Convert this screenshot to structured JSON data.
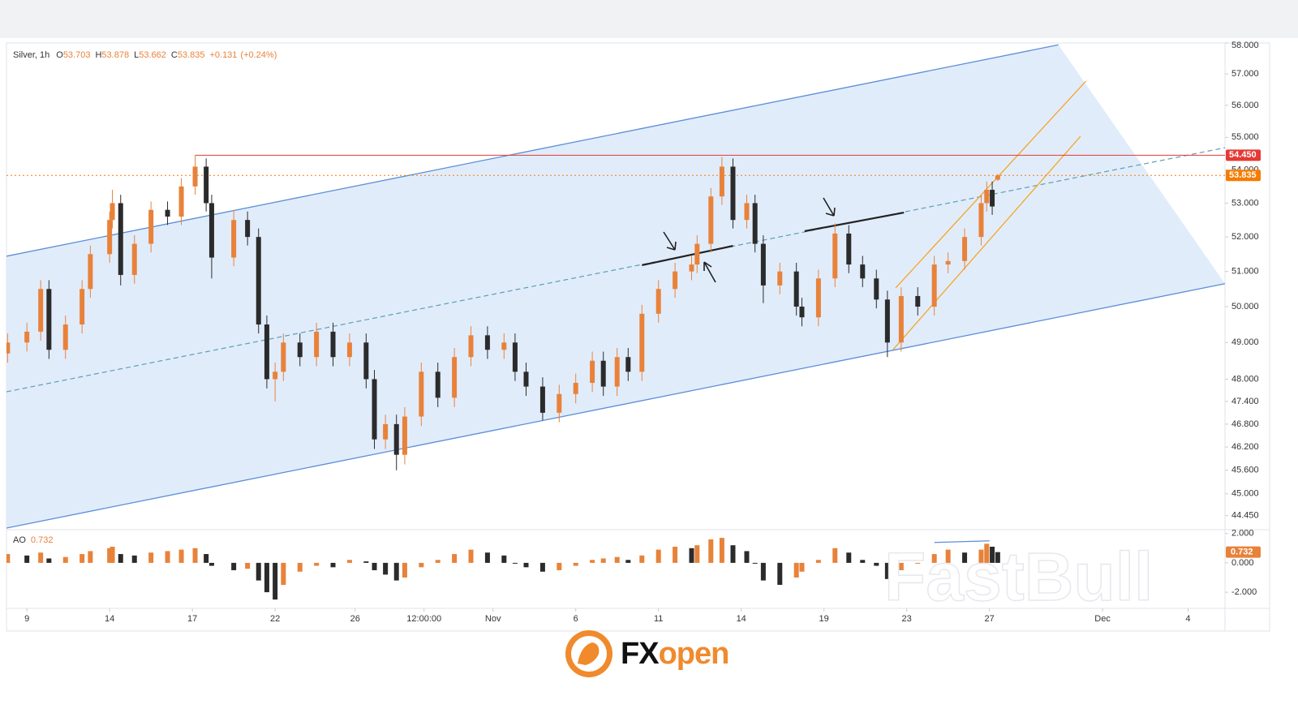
{
  "chart_data": [
    {
      "type": "candlestick",
      "title": "Silver, 1h",
      "ohlc_labels": [
        "O",
        "H",
        "L",
        "C"
      ],
      "change": {
        "value": 0.131,
        "label": "+0.131"
      },
      "change_pct": {
        "value": 0.24,
        "label": "(+0.24%)"
      },
      "log": true,
      "color_up": "#e8823a",
      "color_down": "#2b2b2b",
      "xlim": [
        -0.74,
        43.44
      ],
      "xticks": [
        {
          "value": 0,
          "label": "9"
        },
        {
          "value": 3,
          "label": "14"
        },
        {
          "value": 6,
          "label": "17"
        },
        {
          "value": 9,
          "label": "22"
        },
        {
          "value": 11.9,
          "label": "26"
        },
        {
          "value": 14.4,
          "label": "12:00:00"
        },
        {
          "value": 16.9,
          "label": "Nov"
        },
        {
          "value": 19.9,
          "label": "6"
        },
        {
          "value": 22.9,
          "label": "11"
        },
        {
          "value": 25.9,
          "label": "14"
        },
        {
          "value": 28.9,
          "label": "19"
        },
        {
          "value": 31.9,
          "label": "23"
        },
        {
          "value": 34.9,
          "label": "27"
        },
        {
          "value": 39,
          "label": "Dec"
        },
        {
          "value": 42.1,
          "label": "4"
        }
      ],
      "ylim": [
        44.1,
        58
      ],
      "yticks": [
        {
          "value": 58,
          "label": "58.000"
        },
        {
          "value": 57,
          "label": "57.000"
        },
        {
          "value": 56,
          "label": "56.000"
        },
        {
          "value": 55,
          "label": "55.000"
        },
        {
          "value": 54,
          "label": "54.000"
        },
        {
          "value": 53,
          "label": "53.000"
        },
        {
          "value": 52,
          "label": "52.000"
        },
        {
          "value": 51,
          "label": "51.000"
        },
        {
          "value": 50,
          "label": "50.000"
        },
        {
          "value": 49,
          "label": "49.000"
        },
        {
          "value": 48,
          "label": "48.000"
        },
        {
          "value": 47.4,
          "label": "47.400"
        },
        {
          "value": 46.8,
          "label": "46.800"
        },
        {
          "value": 46.2,
          "label": "46.200"
        },
        {
          "value": 45.6,
          "label": "45.600"
        },
        {
          "value": 45,
          "label": "45.000"
        },
        {
          "value": 44.45,
          "label": "44.450"
        }
      ],
      "x": [
        -0.7,
        0,
        0.5,
        0.8,
        1.4,
        2,
        2.3,
        3,
        3.1,
        3.4,
        3.9,
        4.5,
        5.1,
        5.6,
        6.1,
        6.5,
        6.7,
        7.5,
        8,
        8.4,
        8.7,
        9,
        9.3,
        9.9,
        10.5,
        11.1,
        11.7,
        12.3,
        12.6,
        13,
        13.4,
        13.7,
        14.3,
        14.9,
        15.5,
        16.1,
        16.7,
        17.3,
        17.7,
        18.1,
        18.7,
        19.3,
        19.9,
        20.5,
        20.9,
        21.4,
        21.8,
        22.3,
        22.9,
        23.5,
        24.1,
        24.3,
        24.8,
        25.2,
        25.6,
        26.1,
        26.4,
        26.7,
        27.3,
        27.9,
        28.1,
        28.7,
        29.3,
        29.8,
        30.3,
        30.8,
        31.2,
        31.7,
        32.3,
        32.9,
        33.4,
        34,
        34.6,
        34.8,
        35,
        35.2
      ],
      "open": [
        48.7,
        49.0,
        49.3,
        50.5,
        48.8,
        49.5,
        50.5,
        51.5,
        52.5,
        53.0,
        50.9,
        51.8,
        52.8,
        52.6,
        53.5,
        54.1,
        53.0,
        51.4,
        52.5,
        52.0,
        49.5,
        48.0,
        48.2,
        49.0,
        48.6,
        49.3,
        48.6,
        49.0,
        48.0,
        46.4,
        46.8,
        46.0,
        47.0,
        48.2,
        47.5,
        48.6,
        49.2,
        48.8,
        49.0,
        48.2,
        47.8,
        47.1,
        47.6,
        47.9,
        48.5,
        47.8,
        48.6,
        48.2,
        49.8,
        50.5,
        51.0,
        51.2,
        51.8,
        53.2,
        54.1,
        52.5,
        53.0,
        51.8,
        50.6,
        51.0,
        50.0,
        49.7,
        50.8,
        52.1,
        51.2,
        50.8,
        50.2,
        49.0,
        50.3,
        50.0,
        51.2,
        51.3,
        52.0,
        53.0,
        53.4,
        53.703
      ],
      "high": [
        49.25,
        49.55,
        50.75,
        50.75,
        49.75,
        50.75,
        51.75,
        52.75,
        53.4,
        53.25,
        52.05,
        53.05,
        53.05,
        53.75,
        54.45,
        54.35,
        53.25,
        52.8,
        52.75,
        52.25,
        49.75,
        48.45,
        49.25,
        49.25,
        49.55,
        49.55,
        49.25,
        49.25,
        48.25,
        47.05,
        47.05,
        47.25,
        48.45,
        48.45,
        48.85,
        49.45,
        49.45,
        49.25,
        49.25,
        48.45,
        48.05,
        47.85,
        48.15,
        48.75,
        48.75,
        48.85,
        48.85,
        50.05,
        50.75,
        51.25,
        51.45,
        52.05,
        53.45,
        54.4,
        54.35,
        53.25,
        53.25,
        52.05,
        51.25,
        51.25,
        50.25,
        51.05,
        52.4,
        52.35,
        51.45,
        51.05,
        50.45,
        50.55,
        50.55,
        51.45,
        51.55,
        52.25,
        53.25,
        53.65,
        53.65,
        53.878
      ],
      "low": [
        48.45,
        48.75,
        49.05,
        48.55,
        48.55,
        49.25,
        50.25,
        51.25,
        52.25,
        50.6,
        50.65,
        51.55,
        52.35,
        52.35,
        53.25,
        52.75,
        50.8,
        51.15,
        51.75,
        49.25,
        47.75,
        47.4,
        47.95,
        48.35,
        48.35,
        48.35,
        48.35,
        47.75,
        46.15,
        46.15,
        45.6,
        45.75,
        46.75,
        47.25,
        47.25,
        48.35,
        48.55,
        48.55,
        47.95,
        47.55,
        46.9,
        46.85,
        47.35,
        47.65,
        47.55,
        47.55,
        47.95,
        47.95,
        49.55,
        50.25,
        50.75,
        50.95,
        51.55,
        52.95,
        52.25,
        52.25,
        51.55,
        50.1,
        50.35,
        49.75,
        49.45,
        49.45,
        50.55,
        50.95,
        50.55,
        49.95,
        48.6,
        48.75,
        49.75,
        49.75,
        50.95,
        51.05,
        51.75,
        52.75,
        52.65,
        53.662
      ],
      "close": [
        49.0,
        49.3,
        50.5,
        48.8,
        49.5,
        50.5,
        51.5,
        52.5,
        53.0,
        50.9,
        51.8,
        52.8,
        52.6,
        53.5,
        54.1,
        53.0,
        51.4,
        52.5,
        52.0,
        49.5,
        48.0,
        48.2,
        49.0,
        48.6,
        49.3,
        48.6,
        49.0,
        48.0,
        46.4,
        46.8,
        46.0,
        47.0,
        48.2,
        47.5,
        48.6,
        49.2,
        48.8,
        49.0,
        48.2,
        47.8,
        47.1,
        47.6,
        47.9,
        48.5,
        47.8,
        48.6,
        48.2,
        49.8,
        50.5,
        51.0,
        51.2,
        51.8,
        53.2,
        54.1,
        52.5,
        53.0,
        51.8,
        50.6,
        51.0,
        50.0,
        49.7,
        50.8,
        52.1,
        51.2,
        50.8,
        50.2,
        49.0,
        50.3,
        50.0,
        51.2,
        51.3,
        52.0,
        53.0,
        53.4,
        52.9,
        53.835
      ],
      "channel_fill": "#dce9fa",
      "trend_lines": [
        {
          "x": [
            -0.74,
            37.4
          ],
          "y": [
            51.44,
            57.94
          ],
          "color": "#5b8ed6",
          "width": 1.3,
          "style": "solid"
        },
        {
          "x": [
            -0.74,
            43.44
          ],
          "y": [
            44.14,
            50.65
          ],
          "color": "#5b8ed6",
          "width": 1.3,
          "style": "solid"
        },
        {
          "x": [
            -0.74,
            43.44
          ],
          "y": [
            47.66,
            54.68
          ],
          "color": "#5e9eb0",
          "width": 1.2,
          "style": "dashed"
        },
        {
          "x": [
            31.5,
            38.4
          ],
          "y": [
            50.53,
            56.77
          ],
          "color": "#f5a623",
          "width": 1.3,
          "style": "solid"
        },
        {
          "x": [
            31.4,
            38.2
          ],
          "y": [
            48.8,
            55.03
          ],
          "color": "#f5a623",
          "width": 1.3,
          "style": "solid"
        },
        {
          "x": [
            22.3,
            25.6
          ],
          "y": [
            51.18,
            51.74
          ],
          "color": "#222222",
          "width": 2.2,
          "style": "solid"
        },
        {
          "x": [
            28.2,
            31.8
          ],
          "y": [
            52.17,
            52.72
          ],
          "color": "#222222",
          "width": 2.2,
          "style": "solid"
        }
      ],
      "levels": [
        {
          "value": 54.45,
          "label": "54.450",
          "color": "#e53935",
          "style": "solid",
          "x_start": 6.1
        },
        {
          "value": 53.835,
          "label": "53.835",
          "color": "#f57c00",
          "style": "dotted",
          "x_start": -0.74
        }
      ],
      "watermark": "FastBull",
      "brand_parts": [
        "FX",
        "open"
      ]
    },
    {
      "type": "bar",
      "title": "AO",
      "color_up": "#e8823a",
      "color_down": "#2b2b2b",
      "ylim": [
        -3.1,
        2.15
      ],
      "yticks": [
        {
          "value": 2,
          "label": "2.000"
        },
        {
          "value": 0,
          "label": "0.000"
        },
        {
          "value": -2,
          "label": "-2.000"
        }
      ],
      "values": [
        0.6,
        0.5,
        0.7,
        0.3,
        0.4,
        0.6,
        0.8,
        1.0,
        1.1,
        0.6,
        0.5,
        0.7,
        0.8,
        0.9,
        1.0,
        0.6,
        -0.2,
        -0.5,
        -0.4,
        -1.2,
        -2.0,
        -2.5,
        -1.5,
        -0.6,
        -0.2,
        -0.3,
        0.2,
        0.1,
        -0.5,
        -0.8,
        -1.2,
        -1.0,
        -0.3,
        0.2,
        0.6,
        0.9,
        0.7,
        0.5,
        0.0,
        -0.3,
        -0.6,
        -0.5,
        -0.2,
        0.2,
        0.3,
        0.4,
        0.2,
        0.5,
        0.9,
        1.1,
        1.0,
        1.2,
        1.6,
        1.7,
        1.2,
        0.8,
        0.0,
        -1.2,
        -1.5,
        -1.0,
        -0.6,
        0.2,
        1.0,
        0.7,
        0.2,
        -0.2,
        -1.1,
        -0.5,
        0.0,
        0.6,
        0.9,
        0.7,
        0.9,
        1.3,
        1.1,
        0.732
      ],
      "trend_lines": [
        {
          "x": [
            32.9,
            34.9
          ],
          "y": [
            1.39,
            1.5
          ],
          "color": "#5b8ed6",
          "width": 1.3,
          "style": "solid"
        }
      ]
    }
  ]
}
